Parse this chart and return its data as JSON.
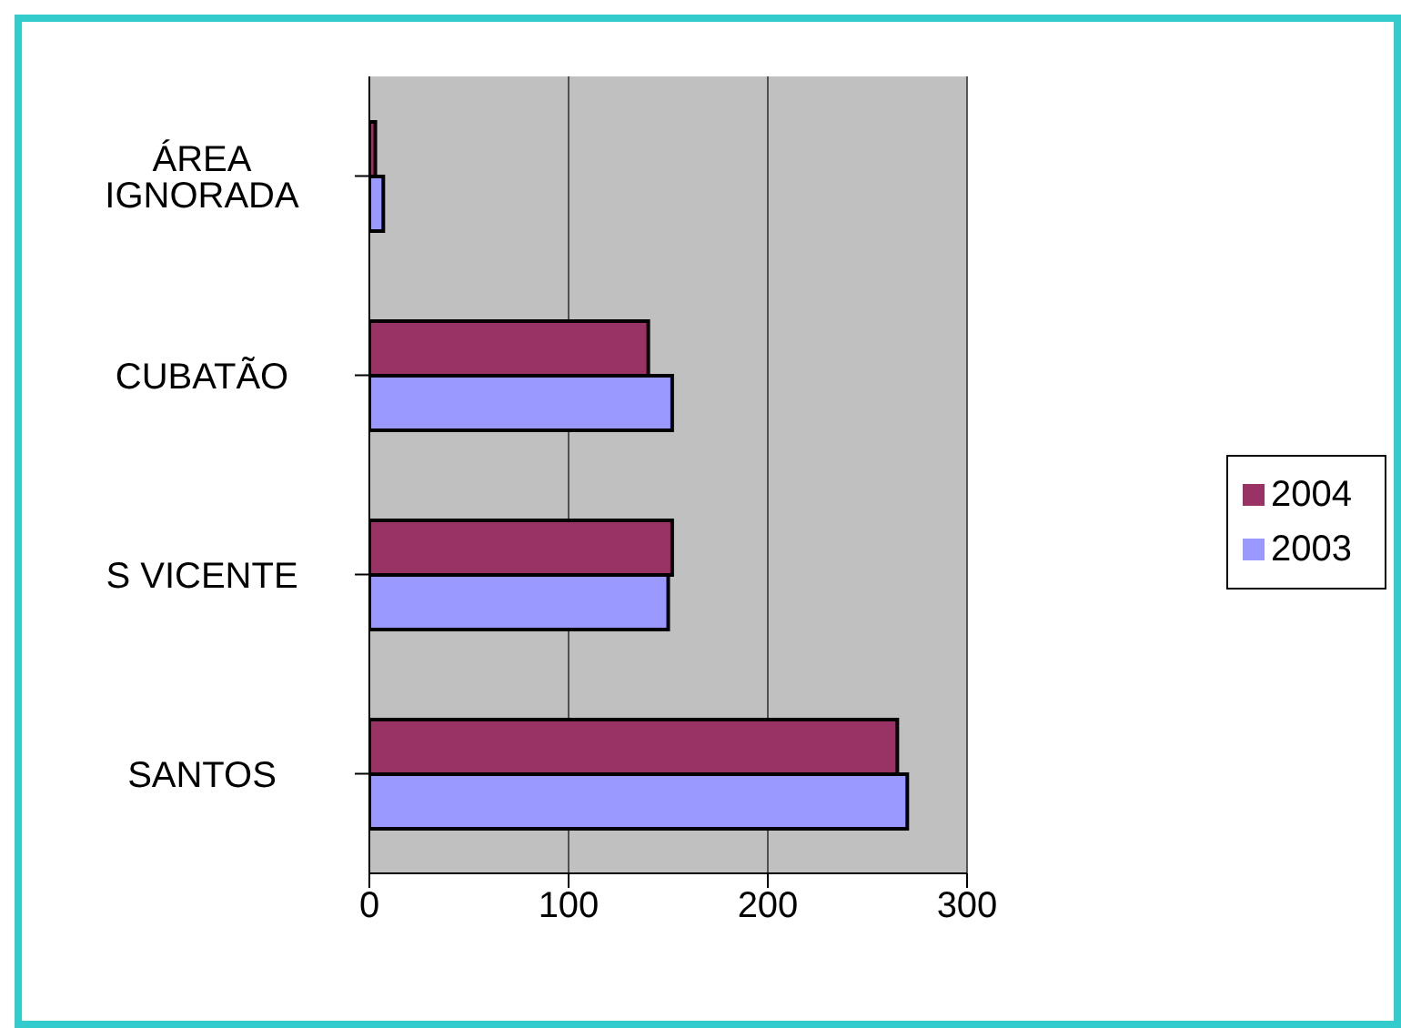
{
  "chart_data": {
    "type": "bar",
    "orientation": "horizontal",
    "categories": [
      "ÁREA IGNORADA",
      "CUBATÃO",
      "S VICENTE",
      "SANTOS"
    ],
    "series": [
      {
        "name": "2004",
        "color": "#993366",
        "values": [
          3,
          140,
          152,
          265
        ]
      },
      {
        "name": "2003",
        "color": "#9999ff",
        "values": [
          7,
          152,
          150,
          270
        ]
      }
    ],
    "xlim": [
      0,
      300
    ],
    "xticks": [
      0,
      100,
      200,
      300
    ],
    "grid": "x",
    "legend": "right"
  }
}
